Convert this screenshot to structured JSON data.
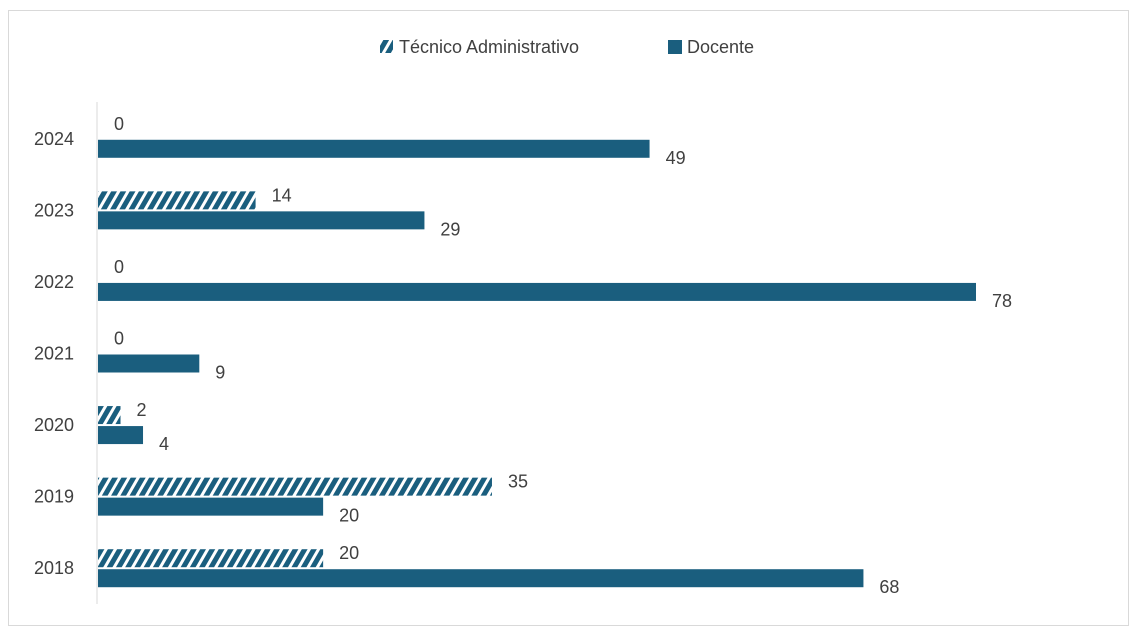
{
  "chart_data": {
    "type": "bar",
    "orientation": "horizontal",
    "categories": [
      "2018",
      "2019",
      "2020",
      "2021",
      "2022",
      "2023",
      "2024"
    ],
    "series": [
      {
        "name": "Técnico Administrativo",
        "values": [
          20,
          35,
          2,
          0,
          0,
          14,
          0
        ],
        "color": "#1a5e7e",
        "pattern": "diagonal-hatch"
      },
      {
        "name": "Docente",
        "values": [
          68,
          20,
          4,
          9,
          78,
          29,
          49
        ],
        "color": "#1a5e7e",
        "pattern": "solid"
      }
    ],
    "xlim": [
      0,
      78
    ],
    "grid": false,
    "legend_position": "top",
    "data_labels": true
  }
}
